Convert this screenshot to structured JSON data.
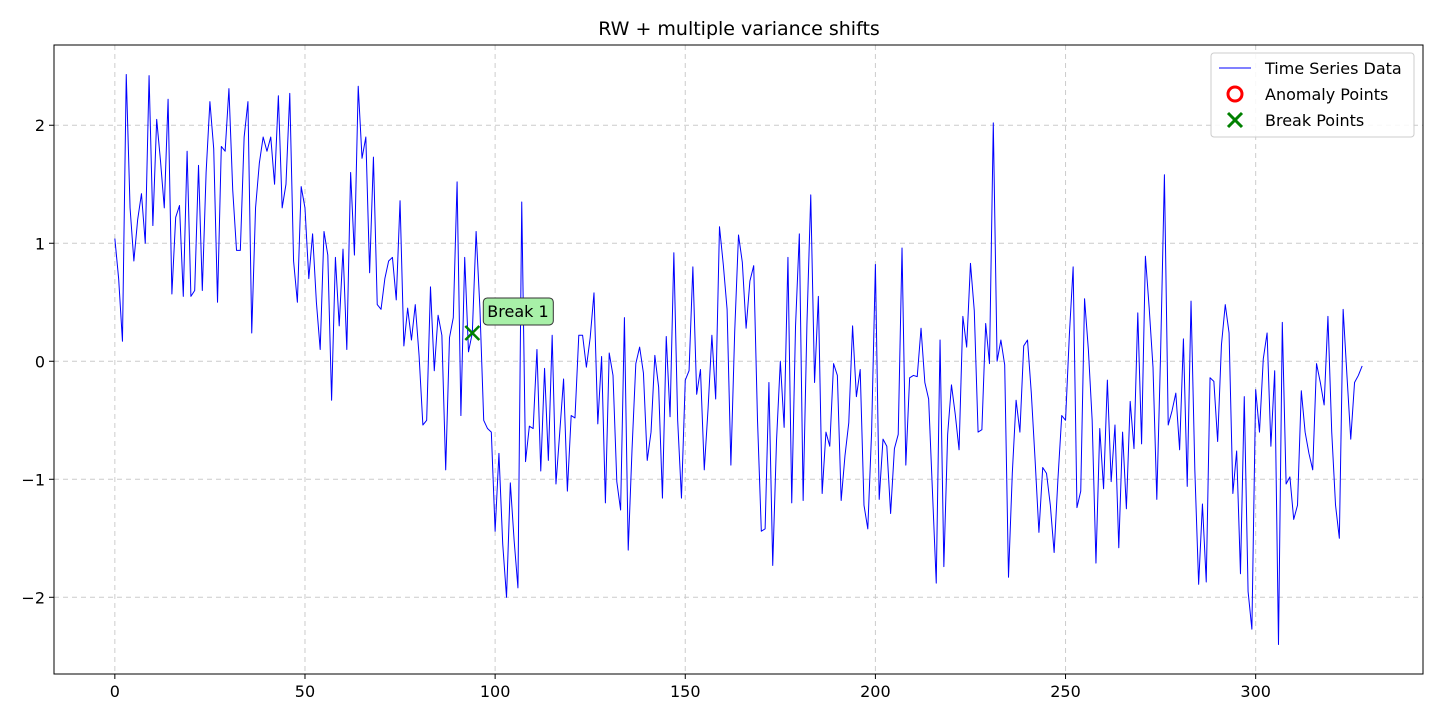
{
  "chart_data": {
    "type": "line",
    "title": "RW + multiple variance shifts",
    "xlabel": "",
    "ylabel": "",
    "xlim": [
      -16,
      344
    ],
    "ylim": [
      -2.65,
      2.68
    ],
    "xticks": [
      0,
      50,
      100,
      150,
      200,
      250,
      300
    ],
    "yticks": [
      -2,
      -1,
      0,
      1,
      2
    ],
    "ytick_labels": [
      "−2",
      "−1",
      "0",
      "1",
      "2"
    ],
    "grid": true,
    "legend_position": "top-right",
    "legend": [
      {
        "label": "Time Series Data",
        "marker": "line",
        "color": "#0000ff"
      },
      {
        "label": "Anomaly Points",
        "marker": "circle",
        "color": "#ff0000"
      },
      {
        "label": "Break Points",
        "marker": "x",
        "color": "#008000"
      }
    ],
    "series": [
      {
        "name": "Time Series Data",
        "color": "#0000ff",
        "x_start": 0,
        "values": [
          1.04,
          0.7,
          0.17,
          2.43,
          1.3,
          0.85,
          1.2,
          1.42,
          1.0,
          2.42,
          1.15,
          2.05,
          1.7,
          1.3,
          2.22,
          0.57,
          1.22,
          1.32,
          0.55,
          1.78,
          0.55,
          0.6,
          1.66,
          0.6,
          1.6,
          2.2,
          1.8,
          0.5,
          1.82,
          1.78,
          2.31,
          1.45,
          0.94,
          0.94,
          1.9,
          2.2,
          0.24,
          1.3,
          1.68,
          1.9,
          1.78,
          1.9,
          1.5,
          2.25,
          1.3,
          1.5,
          2.27,
          0.85,
          0.5,
          1.48,
          1.3,
          0.7,
          1.08,
          0.5,
          0.1,
          1.1,
          0.9,
          -0.33,
          0.88,
          0.3,
          0.95,
          0.1,
          1.6,
          0.9,
          2.33,
          1.72,
          1.9,
          0.75,
          1.73,
          0.48,
          0.44,
          0.7,
          0.85,
          0.88,
          0.52,
          1.36,
          0.13,
          0.45,
          0.18,
          0.48,
          0.05,
          -0.54,
          -0.5,
          0.63,
          -0.08,
          0.39,
          0.22,
          -0.92,
          0.2,
          0.37,
          1.52,
          -0.46,
          0.88,
          0.08,
          0.24,
          1.1,
          0.45,
          -0.5,
          -0.57,
          -0.6,
          -1.44,
          -0.78,
          -1.55,
          -2.0,
          -1.03,
          -1.52,
          -1.92,
          1.35,
          -0.85,
          -0.55,
          -0.57,
          0.1,
          -0.93,
          -0.06,
          -0.84,
          0.22,
          -1.04,
          -0.6,
          -0.15,
          -1.1,
          -0.46,
          -0.48,
          0.22,
          0.22,
          -0.05,
          0.2,
          0.58,
          -0.53,
          0.04,
          -1.2,
          0.07,
          -0.12,
          -1.02,
          -1.26,
          0.37,
          -1.6,
          -0.75,
          -0.02,
          0.12,
          -0.1,
          -0.84,
          -0.6,
          0.05,
          -0.22,
          -1.16,
          0.21,
          -0.47,
          0.92,
          -0.5,
          -1.16,
          -0.16,
          -0.08,
          0.8,
          -0.28,
          -0.07,
          -0.92,
          -0.4,
          0.22,
          -0.32,
          1.14,
          0.82,
          0.44,
          -0.88,
          0.25,
          1.07,
          0.84,
          0.28,
          0.68,
          0.81,
          -0.5,
          -1.44,
          -1.42,
          -0.18,
          -1.73,
          -0.67,
          0.0,
          -0.56,
          0.88,
          -1.2,
          0.3,
          1.08,
          -1.18,
          0.32,
          1.41,
          -0.18,
          0.55,
          -1.12,
          -0.6,
          -0.72,
          -0.02,
          -0.12,
          -1.18,
          -0.8,
          -0.52,
          0.3,
          -0.3,
          -0.07,
          -1.22,
          -1.42,
          -0.6,
          0.82,
          -1.17,
          -0.66,
          -0.72,
          -1.29,
          -0.74,
          -0.62,
          0.96,
          -0.88,
          -0.14,
          -0.12,
          -0.13,
          0.28,
          -0.18,
          -0.32,
          -1.1,
          -1.88,
          0.18,
          -1.74,
          -0.62,
          -0.2,
          -0.45,
          -0.75,
          0.38,
          0.12,
          0.83,
          0.43,
          -0.6,
          -0.58,
          0.32,
          -0.02,
          2.02,
          0.0,
          0.18,
          -0.03,
          -1.83,
          -0.95,
          -0.33,
          -0.6,
          0.13,
          0.18,
          -0.27,
          -0.84,
          -1.45,
          -0.9,
          -0.95,
          -1.22,
          -1.62,
          -1.0,
          -0.46,
          -0.5,
          0.22,
          0.8,
          -1.24,
          -1.1,
          0.53,
          0.1,
          -0.5,
          -1.71,
          -0.57,
          -1.08,
          -0.16,
          -1.02,
          -0.54,
          -1.58,
          -0.6,
          -1.25,
          -0.34,
          -0.74,
          0.41,
          -0.7,
          0.89,
          0.45,
          -0.05,
          -1.17,
          0.07,
          1.58,
          -0.54,
          -0.42,
          -0.27,
          -0.75,
          0.19,
          -1.06,
          0.51,
          -0.92,
          -1.89,
          -1.21,
          -1.87,
          -0.14,
          -0.17,
          -0.68,
          0.14,
          0.48,
          0.24,
          -1.12,
          -0.76,
          -1.8,
          -0.3,
          -1.95,
          -2.27,
          -0.24,
          -0.6,
          0.02,
          0.24,
          -0.72,
          -0.08,
          -2.4,
          0.33,
          -1.04,
          -0.98,
          -1.34,
          -1.22,
          -0.25,
          -0.6,
          -0.78,
          -0.92,
          -0.02,
          -0.18,
          -0.37,
          0.38,
          -0.6,
          -1.22,
          -1.5,
          0.44,
          -0.12,
          -0.66,
          -0.18,
          -0.12,
          -0.04
        ]
      }
    ],
    "anomaly_points": [],
    "break_points": [
      {
        "x": 94,
        "y": 0.24,
        "label": "Break 1"
      }
    ]
  }
}
